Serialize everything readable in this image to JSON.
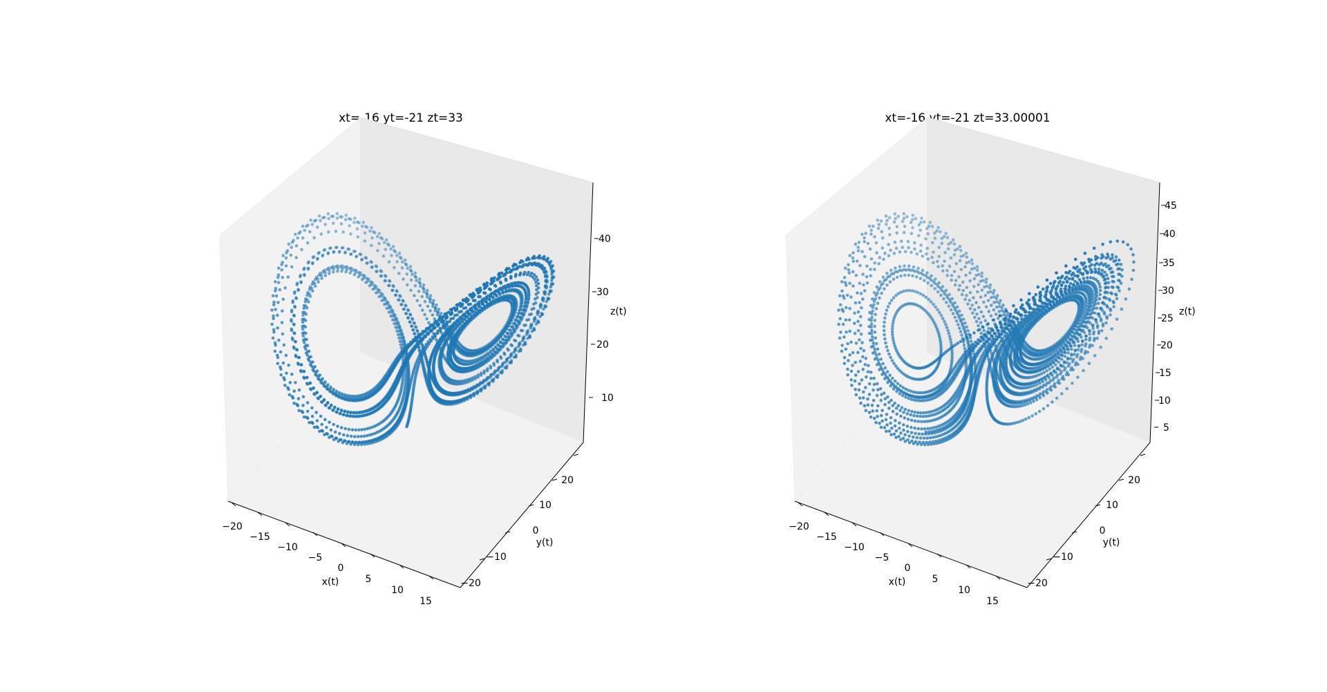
{
  "chart_data": [
    {
      "type": "scatter",
      "title": "xt=-16 yt=-21 zt=33",
      "xlabel": "x(t)",
      "ylabel": "y(t)",
      "zlabel": "z(t)",
      "x_ticks": [
        "−20",
        "−15",
        "−10",
        "−5",
        "0",
        "5",
        "10",
        "15"
      ],
      "y_ticks": [
        "−20",
        "−10",
        "0",
        "10",
        "20"
      ],
      "z_ticks": [
        "10",
        "20",
        "30",
        "40"
      ],
      "xlim": [
        -21,
        19
      ],
      "ylim": [
        -26,
        26
      ],
      "zlim": [
        2,
        48
      ],
      "grid": false,
      "system": "lorenz",
      "initial_state": [
        -16,
        -21,
        33
      ],
      "marker_color": "#1f77b4"
    },
    {
      "type": "scatter",
      "title": "xt=-16 yt=-21 zt=33.00001",
      "xlabel": "x(t)",
      "ylabel": "y(t)",
      "zlabel": "z(t)",
      "x_ticks": [
        "−20",
        "−15",
        "−10",
        "−5",
        "0",
        "5",
        "10",
        "15"
      ],
      "y_ticks": [
        "−20",
        "−10",
        "0",
        "10",
        "20"
      ],
      "z_ticks": [
        "5",
        "10",
        "15",
        "20",
        "25",
        "30",
        "35",
        "40",
        "45"
      ],
      "xlim": [
        -21,
        19
      ],
      "ylim": [
        -26,
        26
      ],
      "zlim": [
        2,
        48
      ],
      "grid": false,
      "system": "lorenz",
      "initial_state": [
        -16,
        -21,
        33.00001
      ],
      "marker_color": "#1f77b4"
    }
  ]
}
